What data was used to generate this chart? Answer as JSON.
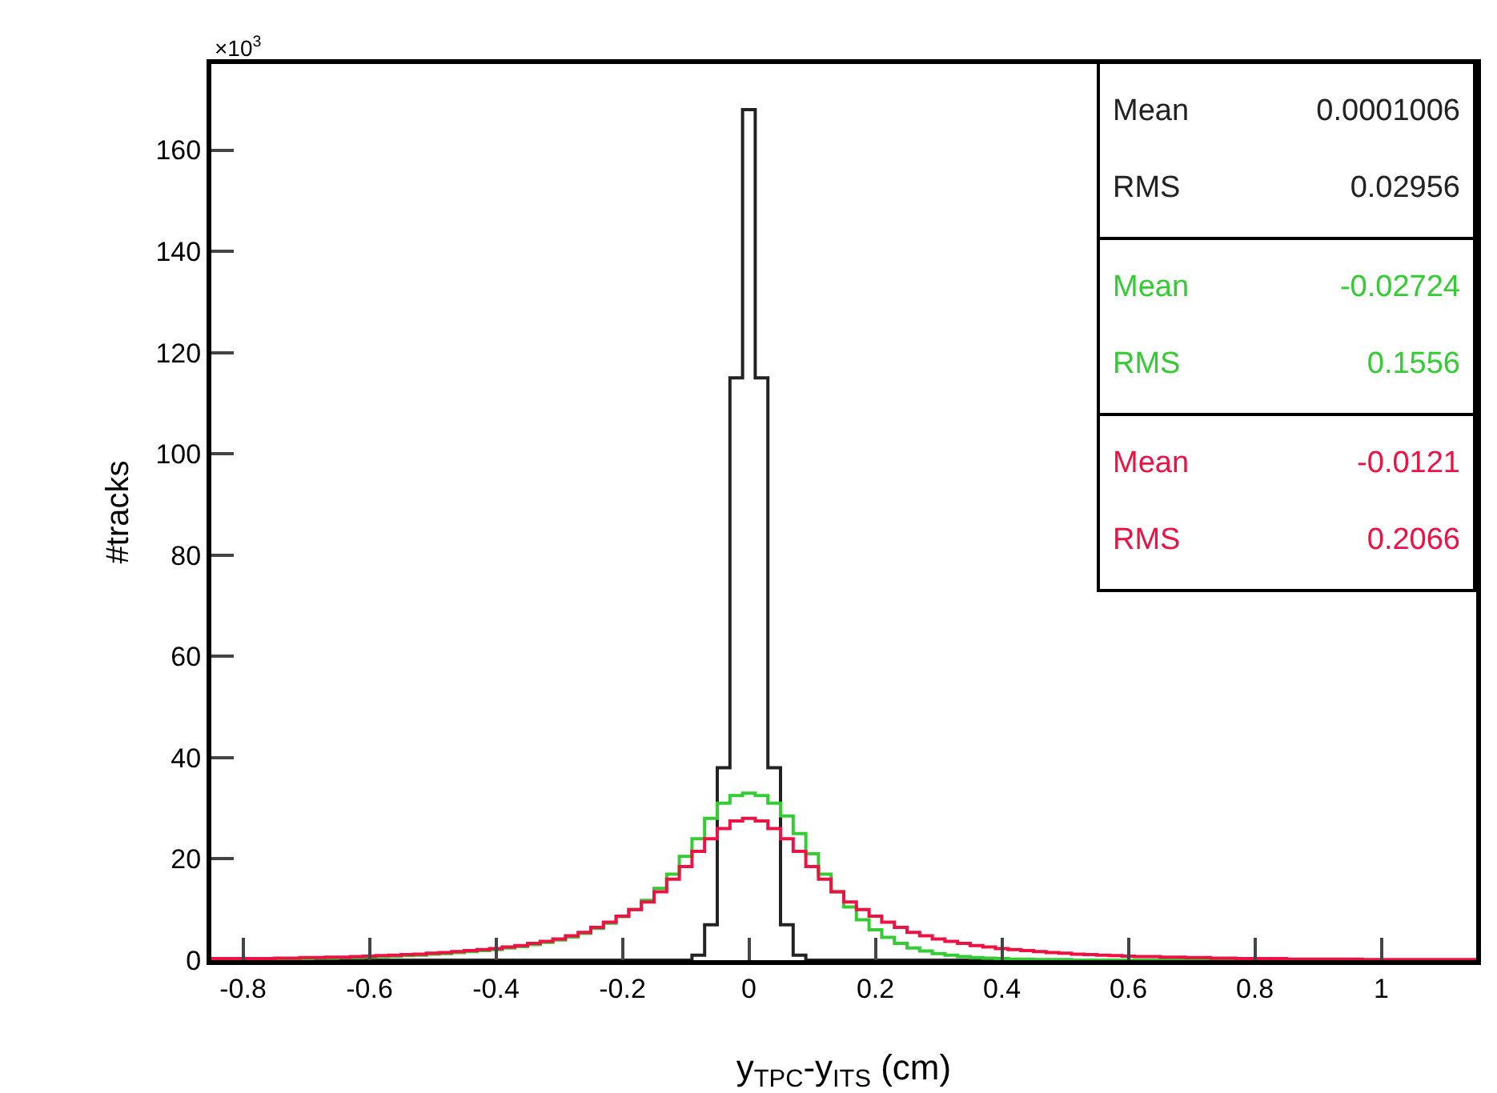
{
  "chart_data": {
    "type": "histogram",
    "xlabel": "y$_{TPC}$-y$_{ITS}$ (cm)",
    "ylabel": "#tracks",
    "annotations": [
      "×10$^{3}$",
      "Mean 0.0001006",
      "RMS 0.02956",
      "Mean -0.02724",
      "RMS 0.1556",
      "Mean -0.0121",
      "RMS 0.2066"
    ],
    "bins": [
      -0.85,
      -0.83,
      -0.81,
      -0.79,
      -0.77,
      -0.75,
      -0.73,
      -0.71,
      -0.69,
      -0.67,
      -0.65,
      -0.63,
      -0.61,
      -0.59,
      -0.57,
      -0.55,
      -0.53,
      -0.51,
      -0.49,
      -0.47,
      -0.45,
      -0.43,
      -0.41,
      -0.39,
      -0.37,
      -0.35,
      -0.33,
      -0.31,
      -0.29,
      -0.27,
      -0.25,
      -0.23,
      -0.21,
      -0.19,
      -0.17,
      -0.15,
      -0.13,
      -0.11,
      -0.09,
      -0.07,
      -0.05,
      -0.03,
      -0.01,
      0.01,
      0.03,
      0.05,
      0.07,
      0.09,
      0.11,
      0.13,
      0.15,
      0.17,
      0.19,
      0.21,
      0.23,
      0.25,
      0.27,
      0.29,
      0.31,
      0.33,
      0.35,
      0.37,
      0.39,
      0.41,
      0.43,
      0.45,
      0.47,
      0.49,
      0.51,
      0.53,
      0.55,
      0.57,
      0.59,
      0.61,
      0.63,
      0.65,
      0.67,
      0.69,
      0.71,
      0.73,
      0.75,
      0.77,
      0.79,
      0.81,
      0.83,
      0.85,
      0.87,
      0.89,
      0.91,
      0.93,
      0.95,
      0.97,
      0.99,
      1.01,
      1.03,
      1.05,
      1.07,
      1.09,
      1.11,
      1.13,
      1.15
    ],
    "series": [
      {
        "color": "#222222",
        "values": [
          0,
          0,
          0,
          0,
          0,
          0,
          0,
          0,
          0,
          0,
          0,
          0,
          0,
          0,
          0,
          0,
          0,
          0,
          0,
          0,
          0,
          0,
          0,
          0,
          0,
          0,
          0,
          0,
          0,
          0,
          0,
          0,
          0,
          0,
          0,
          0,
          0,
          0,
          1,
          7,
          38,
          115,
          168,
          115,
          38,
          7,
          1,
          0,
          0,
          0,
          0,
          0,
          0,
          0,
          0,
          0,
          0,
          0,
          0,
          0,
          0,
          0,
          0,
          0,
          0,
          0,
          0,
          0,
          0,
          0,
          0,
          0,
          0,
          0,
          0,
          0,
          0,
          0,
          0,
          0,
          0,
          0,
          0,
          0,
          0,
          0,
          0,
          0,
          0,
          0,
          0,
          0,
          0,
          0,
          0,
          0,
          0,
          0,
          0,
          0
        ]
      },
      {
        "color": "#33cc33",
        "values": [
          0.2,
          0.2,
          0.2,
          0.2,
          0.2,
          0.3,
          0.3,
          0.3,
          0.4,
          0.4,
          0.5,
          0.5,
          0.6,
          0.7,
          0.8,
          0.9,
          1,
          1.2,
          1.3,
          1.5,
          1.7,
          1.9,
          2.1,
          2.4,
          2.7,
          3.1,
          3.5,
          4,
          4.6,
          5.3,
          6.3,
          7.3,
          8.6,
          10,
          11.8,
          14.2,
          17,
          20.5,
          24,
          28,
          31,
          32.5,
          33,
          32.5,
          31,
          28.5,
          25,
          21,
          17,
          13.5,
          10.5,
          8,
          6,
          4.5,
          3.3,
          2.4,
          1.8,
          1.3,
          1,
          0.7,
          0.5,
          0.4,
          0.3,
          0.2,
          0.2,
          0.1,
          0.1,
          0.1,
          0,
          0,
          0,
          0,
          0,
          0,
          0,
          0,
          0,
          0,
          0,
          0,
          0,
          0,
          0,
          0,
          0,
          0,
          0,
          0,
          0,
          0,
          0,
          0,
          0,
          0,
          0,
          0,
          0,
          0,
          0,
          0
        ]
      },
      {
        "color": "#ee1144",
        "values": [
          0.3,
          0.3,
          0.3,
          0.3,
          0.3,
          0.4,
          0.4,
          0.5,
          0.5,
          0.6,
          0.6,
          0.7,
          0.8,
          0.9,
          1,
          1.1,
          1.2,
          1.4,
          1.5,
          1.7,
          1.9,
          2.1,
          2.3,
          2.6,
          2.9,
          3.3,
          3.7,
          4.2,
          4.8,
          5.5,
          6.5,
          7.5,
          8.7,
          10,
          11.5,
          13.5,
          16,
          18.5,
          21.5,
          24,
          26,
          27.5,
          28,
          27.5,
          26,
          24,
          21.5,
          18.5,
          16,
          13.5,
          11.5,
          10,
          8.7,
          7.5,
          6.5,
          5.5,
          4.8,
          4.2,
          3.7,
          3.3,
          2.9,
          2.6,
          2.3,
          2.1,
          1.9,
          1.7,
          1.5,
          1.4,
          1.2,
          1.1,
          1,
          0.9,
          0.8,
          0.7,
          0.7,
          0.6,
          0.6,
          0.5,
          0.5,
          0.4,
          0.4,
          0.3,
          0.3,
          0.3,
          0.3,
          0.2,
          0.2,
          0.2,
          0.2,
          0.2,
          0.2,
          0.1,
          0.1,
          0.1,
          0.1,
          0.1,
          0.1,
          0.1,
          0.1,
          0.1
        ]
      }
    ],
    "xlim": [
      -0.85,
      1.15
    ],
    "xticks": [
      {
        "value": -0.8,
        "label": "-0.8"
      },
      {
        "value": -0.6,
        "label": "-0.6"
      },
      {
        "value": -0.4,
        "label": "-0.4"
      },
      {
        "value": -0.2,
        "label": "-0.2"
      },
      {
        "value": 0,
        "label": "0"
      },
      {
        "value": 0.2,
        "label": "0.2"
      },
      {
        "value": 0.4,
        "label": "0.4"
      },
      {
        "value": 0.6,
        "label": "0.6"
      },
      {
        "value": 0.8,
        "label": "0.8"
      },
      {
        "value": 1,
        "label": "1"
      }
    ],
    "ylim": [
      0,
      177
    ],
    "yticks": [
      0,
      20,
      40,
      60,
      80,
      100,
      120,
      140,
      160
    ],
    "grid": false
  }
}
